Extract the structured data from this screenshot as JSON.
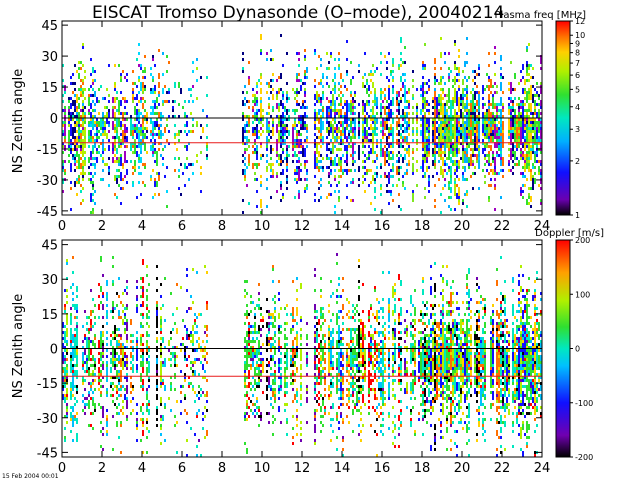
{
  "title": "EISCAT Tromso Dynasonde (O–mode),  20040214",
  "footer": "15 Feb 2004 00:01",
  "chart_data": [
    {
      "type": "scatter",
      "name": "plasma-frequency-panel",
      "ylabel": "NS Zenith angle",
      "xlim": [
        0,
        24
      ],
      "ylim": [
        -47,
        47
      ],
      "x_ticks": [
        0,
        2,
        4,
        6,
        8,
        10,
        12,
        14,
        16,
        18,
        20,
        22,
        24
      ],
      "y_ticks": [
        -45,
        -30,
        -15,
        0,
        15,
        30,
        45
      ],
      "ref_lines": [
        {
          "y": 0,
          "color": "#000000"
        },
        {
          "y": -12,
          "color": "#e81a1a"
        }
      ],
      "colorbar": {
        "title": "Plasma freq [MHz]",
        "scale": "log",
        "range": [
          1,
          12
        ],
        "ticks": [
          1,
          2,
          3,
          4,
          5,
          6,
          7,
          8,
          9,
          10,
          12
        ]
      },
      "data_gaps_hours": [
        [
          7.3,
          9.0
        ],
        [
          12.3,
          12.6
        ]
      ]
    },
    {
      "type": "scatter",
      "name": "doppler-panel",
      "ylabel": "NS Zenith angle",
      "xlim": [
        0,
        24
      ],
      "ylim": [
        -47,
        47
      ],
      "x_ticks": [
        0,
        2,
        4,
        6,
        8,
        10,
        12,
        14,
        16,
        18,
        20,
        22,
        24
      ],
      "y_ticks": [
        -45,
        -30,
        -15,
        0,
        15,
        30,
        45
      ],
      "ref_lines": [
        {
          "y": 0,
          "color": "#000000"
        },
        {
          "y": -12,
          "color": "#e81a1a"
        }
      ],
      "colorbar": {
        "title": "Doppler [m/s]",
        "scale": "linear",
        "range": [
          -200,
          200
        ],
        "ticks": [
          -200,
          -100,
          0,
          100,
          200
        ]
      },
      "data_gaps_hours": [
        [
          7.3,
          9.0
        ],
        [
          12.3,
          12.6
        ]
      ]
    }
  ]
}
